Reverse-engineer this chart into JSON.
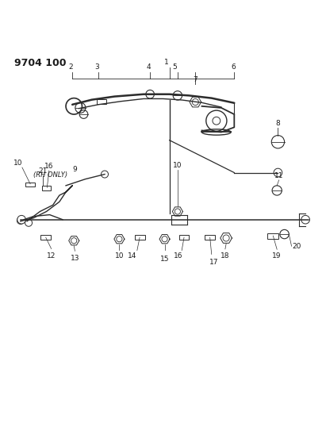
{
  "title": "9704 100",
  "background_color": "#ffffff",
  "line_color": "#2c2c2c",
  "text_color": "#1a1a1a",
  "figsize": [
    4.11,
    5.33
  ],
  "dpi": 100
}
